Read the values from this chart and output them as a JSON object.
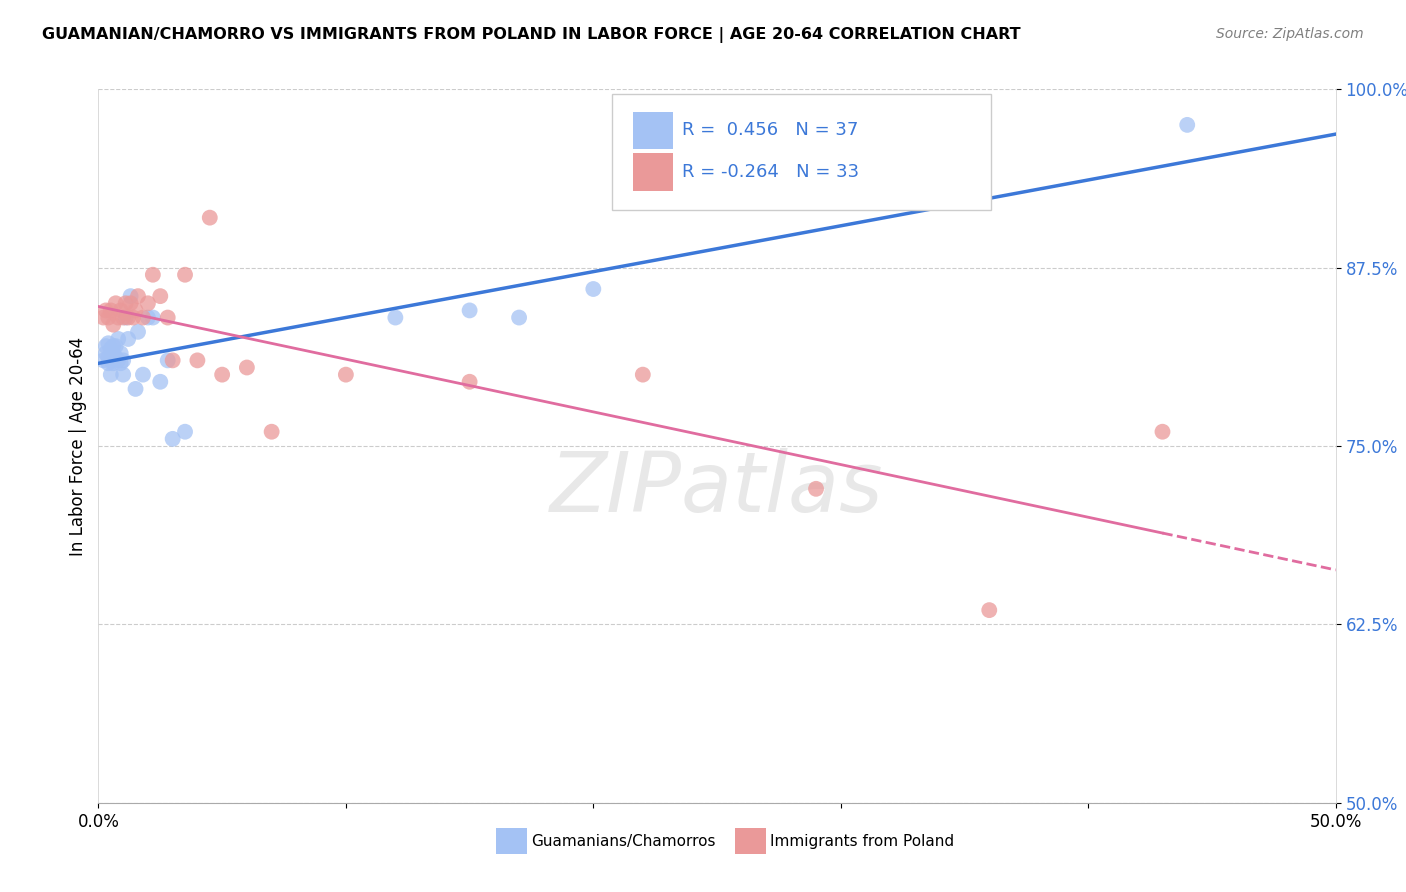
{
  "title": "GUAMANIAN/CHAMORRO VS IMMIGRANTS FROM POLAND IN LABOR FORCE | AGE 20-64 CORRELATION CHART",
  "source": "Source: ZipAtlas.com",
  "ylabel": "In Labor Force | Age 20-64",
  "xlim": [
    0.0,
    0.5
  ],
  "ylim": [
    0.5,
    1.0
  ],
  "ytick_positions": [
    0.5,
    0.625,
    0.75,
    0.875,
    1.0
  ],
  "ytick_labels": [
    "50.0%",
    "62.5%",
    "75.0%",
    "87.5%",
    "100.0%"
  ],
  "R_blue": 0.456,
  "N_blue": 37,
  "R_pink": -0.264,
  "N_pink": 33,
  "blue_color": "#a4c2f4",
  "pink_color": "#ea9999",
  "blue_line_color": "#3c78d8",
  "pink_line_color": "#e06c9f",
  "legend_label_blue": "Guamanians/Chamorros",
  "legend_label_pink": "Immigrants from Poland",
  "blue_scatter_x": [
    0.002,
    0.003,
    0.003,
    0.004,
    0.004,
    0.004,
    0.005,
    0.005,
    0.005,
    0.006,
    0.006,
    0.006,
    0.007,
    0.007,
    0.008,
    0.008,
    0.009,
    0.009,
    0.01,
    0.01,
    0.011,
    0.012,
    0.013,
    0.015,
    0.016,
    0.018,
    0.02,
    0.022,
    0.025,
    0.028,
    0.03,
    0.035,
    0.12,
    0.15,
    0.17,
    0.2,
    0.44
  ],
  "blue_scatter_y": [
    0.81,
    0.815,
    0.82,
    0.808,
    0.812,
    0.822,
    0.81,
    0.818,
    0.8,
    0.815,
    0.808,
    0.82,
    0.812,
    0.82,
    0.81,
    0.825,
    0.808,
    0.815,
    0.81,
    0.8,
    0.84,
    0.825,
    0.855,
    0.79,
    0.83,
    0.8,
    0.84,
    0.84,
    0.795,
    0.81,
    0.755,
    0.76,
    0.84,
    0.845,
    0.84,
    0.86,
    0.975
  ],
  "pink_scatter_x": [
    0.002,
    0.003,
    0.004,
    0.005,
    0.006,
    0.007,
    0.008,
    0.009,
    0.01,
    0.011,
    0.012,
    0.013,
    0.014,
    0.015,
    0.016,
    0.018,
    0.02,
    0.022,
    0.025,
    0.028,
    0.03,
    0.035,
    0.04,
    0.045,
    0.05,
    0.06,
    0.07,
    0.1,
    0.15,
    0.22,
    0.29,
    0.36,
    0.43
  ],
  "pink_scatter_y": [
    0.84,
    0.845,
    0.84,
    0.845,
    0.835,
    0.85,
    0.84,
    0.845,
    0.84,
    0.85,
    0.84,
    0.85,
    0.84,
    0.845,
    0.855,
    0.84,
    0.85,
    0.87,
    0.855,
    0.84,
    0.81,
    0.87,
    0.81,
    0.91,
    0.8,
    0.805,
    0.76,
    0.8,
    0.795,
    0.8,
    0.72,
    0.635,
    0.76
  ],
  "watermark": "ZIPatlas",
  "background_color": "#ffffff",
  "grid_color": "#cccccc"
}
